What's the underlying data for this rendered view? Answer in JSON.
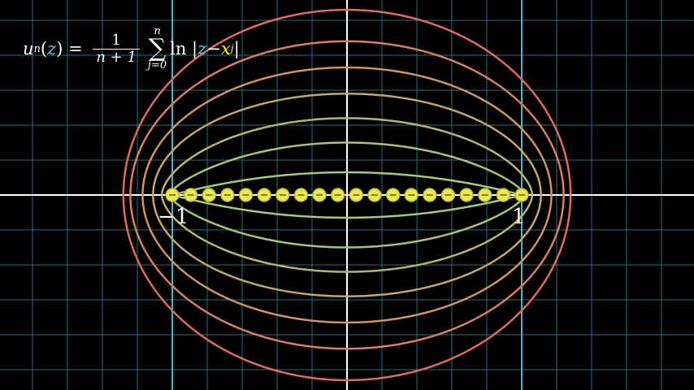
{
  "formula": {
    "lhs_fn": "u",
    "lhs_sub": "n",
    "lhs_arg": "z",
    "frac_num": "1",
    "frac_den": "n + 1",
    "sum_top": "n",
    "sum_bottom": "j=0",
    "ln": "ln",
    "abs_z": "z",
    "minus": "−",
    "abs_x": "x",
    "abs_x_sub": "j"
  },
  "axis_labels": {
    "left": "−1",
    "right": "1"
  },
  "nodes": {
    "count": 20,
    "x_min": -1,
    "x_max": 1
  },
  "level_curves": [
    {
      "sx": 1.0,
      "sy": 0.13
    },
    {
      "sx": 1.02,
      "sy": 0.3
    },
    {
      "sx": 1.06,
      "sy": 0.44
    },
    {
      "sx": 1.11,
      "sy": 0.58
    },
    {
      "sx": 1.17,
      "sy": 0.73
    },
    {
      "sx": 1.24,
      "sy": 0.88
    },
    {
      "sx": 1.28,
      "sy": 1.06
    }
  ],
  "colors": {
    "background": "#000000",
    "grid": "#2a8fa5",
    "axes": "#ffffff",
    "unit_lines": "#3fb7cc",
    "nodes_fill": "#eaea4a",
    "nodes_stroke": "#b5b53a",
    "curves": [
      "#a4c97b",
      "#a9c276",
      "#b7b56e",
      "#c5a56a",
      "#d09366",
      "#d87f63",
      "#df6b5e"
    ]
  }
}
